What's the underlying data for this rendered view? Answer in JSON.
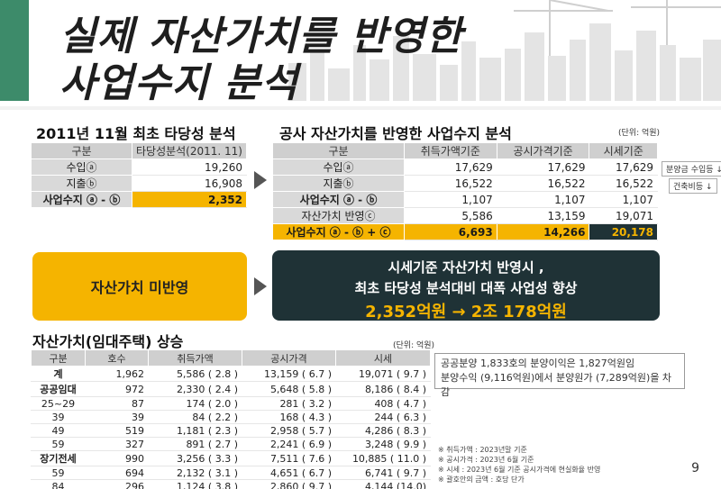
{
  "title": {
    "line1": "실제 자산가치를 반영한",
    "line2": "사업수지 분석"
  },
  "section1": {
    "title": "2011년 11월 최초 타당성 분석",
    "headers": [
      "구분",
      "타당성분석(2011. 11)"
    ],
    "rows": [
      {
        "label": "수입ⓐ",
        "value": "19,260"
      },
      {
        "label": "지출ⓑ",
        "value": "16,908"
      },
      {
        "label": "사업수지 ⓐ - ⓑ",
        "value": "2,352"
      }
    ]
  },
  "section2": {
    "title": "공사 자산가치를 반영한 사업수지 분석",
    "unit": "(단위: 억원)",
    "headers": [
      "구분",
      "취득가액기준",
      "공시가격기준",
      "시세기준"
    ],
    "rows": [
      {
        "label": "수입ⓐ",
        "values": [
          "17,629",
          "17,629",
          "17,629"
        ],
        "note": "분양금 수입등 ↓"
      },
      {
        "label": "지출ⓑ",
        "values": [
          "16,522",
          "16,522",
          "16,522"
        ],
        "note": "건축비등 ↓"
      },
      {
        "label": "사업수지 ⓐ - ⓑ",
        "values": [
          "1,107",
          "1,107",
          "1,107"
        ]
      },
      {
        "label": "자산가치 반영ⓒ",
        "values": [
          "5,586",
          "13,159",
          "19,071"
        ]
      },
      {
        "label": "사업수지 ⓐ - ⓑ + ⓒ",
        "values": [
          "6,693",
          "14,266",
          "20,178"
        ]
      }
    ]
  },
  "mid": {
    "left_text": "자산가치 미반영",
    "right_line1": "시세기준 자산가치 반영시 ,",
    "right_line2": "최초 타당성 분석대비 대폭 사업성 향상",
    "right_line3": "2,352억원 → 2조 178억원"
  },
  "section3": {
    "title": "자산가치(임대주택) 상승",
    "unit": "(단위: 억원)",
    "headers": [
      "구분",
      "호수",
      "취득가액",
      "공시가격",
      "시세"
    ],
    "rows": [
      {
        "label": "계",
        "bold": true,
        "values": [
          "1,962",
          "5,586 ( 2.8 )",
          "13,159 ( 6.7 )",
          "19,071 ( 9.7 )"
        ]
      },
      {
        "label": "공공임대",
        "bold": true,
        "values": [
          "972",
          "2,330 ( 2.4 )",
          "5,648 ( 5.8 )",
          "8,186 ( 8.4 )"
        ]
      },
      {
        "label": "25~29",
        "bold": false,
        "values": [
          "87",
          "174 ( 2.0 )",
          "281 ( 3.2 )",
          "408 ( 4.7 )"
        ]
      },
      {
        "label": "39",
        "bold": false,
        "values": [
          "39",
          "84 ( 2.2 )",
          "168 ( 4.3 )",
          "244 ( 6.3 )"
        ]
      },
      {
        "label": "49",
        "bold": false,
        "values": [
          "519",
          "1,181 ( 2.3 )",
          "2,958 ( 5.7 )",
          "4,286 ( 8.3 )"
        ]
      },
      {
        "label": "59",
        "bold": false,
        "values": [
          "327",
          "891 ( 2.7 )",
          "2,241 ( 6.9 )",
          "3,248 ( 9.9 )"
        ]
      },
      {
        "label": "장기전세",
        "bold": true,
        "values": [
          "990",
          "3,256 ( 3.3 )",
          "7,511 ( 7.6 )",
          "10,885 ( 11.0 )"
        ]
      },
      {
        "label": "59",
        "bold": false,
        "values": [
          "694",
          "2,132 ( 3.1 )",
          "4,651 ( 6.7 )",
          "6,741 ( 9.7 )"
        ]
      },
      {
        "label": "84",
        "bold": false,
        "values": [
          "296",
          "1,124 ( 3.8 )",
          "2,860 ( 9.7 )",
          "4,144 (14.0)"
        ]
      }
    ]
  },
  "info": {
    "line1": "공공분양 1,833호의 분양이익은 1,827억원임",
    "line2": "분양수익 (9,116억원)에서 분양원가 (7,289억원)을 차감"
  },
  "footnotes": [
    "※ 취득가액 : 2023년말 기준",
    "※ 공시가격 : 2023년 6월 기준",
    "※ 시세 : 2023년 6월 기준 공시가격에 현실화율 반영",
    "※ 괄호안의 금액 : 호당 단가"
  ],
  "page_number": "9",
  "colors": {
    "accent_yellow": "#f5b400",
    "dark_teal": "#1f3236",
    "green_bar": "#3d8b6a"
  }
}
